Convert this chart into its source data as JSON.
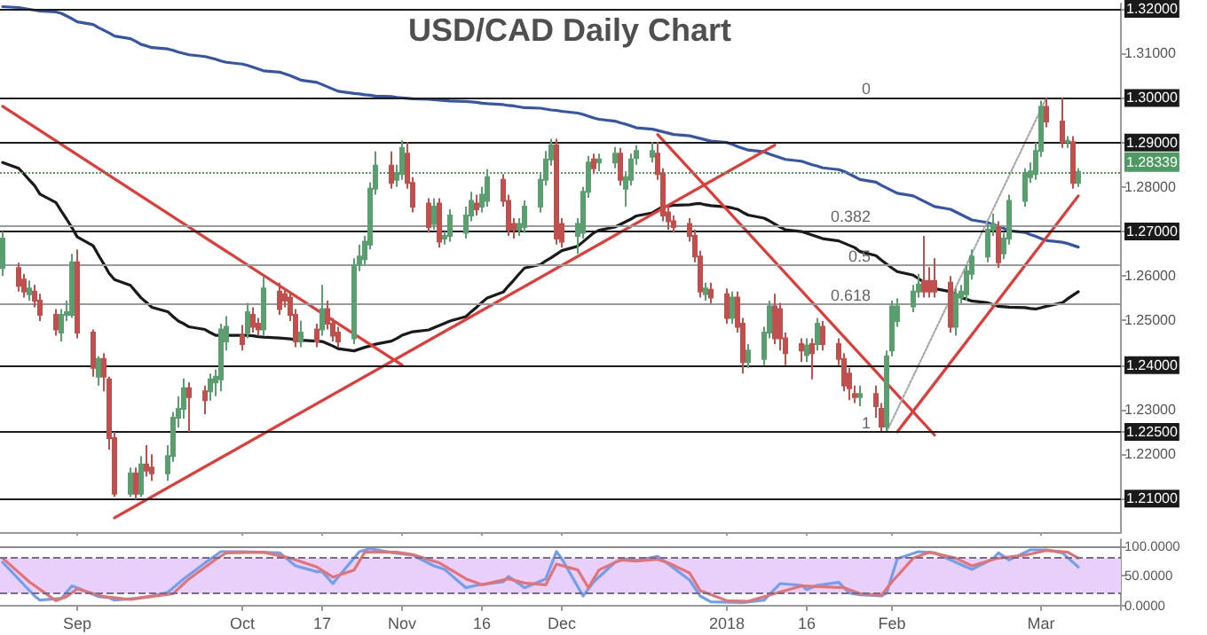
{
  "chart_data": [
    {
      "type": "candlestick",
      "title": "USD/CAD Daily Chart",
      "tick_labels": "y",
      "grid": false,
      "marker": "none",
      "xlim": [
        "2017-08-17T12:00",
        "2018-03-16"
      ],
      "xticks": [
        {
          "value": "2017-09-01",
          "label": null
        },
        {
          "value": "2017-10-02",
          "label": null
        },
        {
          "value": "2017-10-17",
          "label": null
        },
        {
          "value": "2017-11-01",
          "label": null
        },
        {
          "value": "2017-11-16",
          "label": null
        },
        {
          "value": "2017-12-01",
          "label": null
        },
        {
          "value": "2018-01-01",
          "label": null
        },
        {
          "value": "2018-01-16",
          "label": null
        },
        {
          "value": "2018-02-01",
          "label": null
        },
        {
          "value": "2018-03-01",
          "label": null
        }
      ],
      "x": [
        "2017-08-18",
        "2017-08-21",
        "2017-08-22",
        "2017-08-23",
        "2017-08-24",
        "2017-08-25",
        "2017-08-28",
        "2017-08-29",
        "2017-08-30",
        "2017-08-31",
        "2017-09-01",
        "2017-09-04",
        "2017-09-05",
        "2017-09-06",
        "2017-09-07",
        "2017-09-08",
        "2017-09-11",
        "2017-09-12",
        "2017-09-13",
        "2017-09-14",
        "2017-09-15",
        "2017-09-18",
        "2017-09-19",
        "2017-09-20",
        "2017-09-21",
        "2017-09-22",
        "2017-09-25",
        "2017-09-26",
        "2017-09-27",
        "2017-09-28",
        "2017-09-29",
        "2017-10-02",
        "2017-10-03",
        "2017-10-04",
        "2017-10-05",
        "2017-10-06",
        "2017-10-09",
        "2017-10-10",
        "2017-10-11",
        "2017-10-12",
        "2017-10-13",
        "2017-10-16",
        "2017-10-17",
        "2017-10-18",
        "2017-10-19",
        "2017-10-20",
        "2017-10-23",
        "2017-10-24",
        "2017-10-25",
        "2017-10-26",
        "2017-10-27",
        "2017-10-30",
        "2017-10-31",
        "2017-11-01",
        "2017-11-02",
        "2017-11-03",
        "2017-11-06",
        "2017-11-07",
        "2017-11-08",
        "2017-11-09",
        "2017-11-10",
        "2017-11-13",
        "2017-11-14",
        "2017-11-15",
        "2017-11-16",
        "2017-11-17",
        "2017-11-20",
        "2017-11-21",
        "2017-11-22",
        "2017-11-23",
        "2017-11-24",
        "2017-11-27",
        "2017-11-28",
        "2017-11-29",
        "2017-11-30",
        "2017-12-01",
        "2017-12-04",
        "2017-12-05",
        "2017-12-06",
        "2017-12-07",
        "2017-12-08",
        "2017-12-11",
        "2017-12-12",
        "2017-12-13",
        "2017-12-14",
        "2017-12-15",
        "2017-12-18",
        "2017-12-19",
        "2017-12-20",
        "2017-12-21",
        "2017-12-22",
        "2017-12-25",
        "2017-12-26",
        "2017-12-27",
        "2017-12-28",
        "2017-12-29",
        "2018-01-01",
        "2018-01-02",
        "2018-01-03",
        "2018-01-04",
        "2018-01-05",
        "2018-01-08",
        "2018-01-09",
        "2018-01-10",
        "2018-01-11",
        "2018-01-12",
        "2018-01-15",
        "2018-01-16",
        "2018-01-17",
        "2018-01-18",
        "2018-01-19",
        "2018-01-22",
        "2018-01-23",
        "2018-01-24",
        "2018-01-25",
        "2018-01-26",
        "2018-01-29",
        "2018-01-30",
        "2018-01-31",
        "2018-02-01",
        "2018-02-02",
        "2018-02-05",
        "2018-02-06",
        "2018-02-07",
        "2018-02-08",
        "2018-02-09",
        "2018-02-12",
        "2018-02-13",
        "2018-02-14",
        "2018-02-15",
        "2018-02-16",
        "2018-02-19",
        "2018-02-20",
        "2018-02-21",
        "2018-02-22",
        "2018-02-23",
        "2018-02-26",
        "2018-02-27",
        "2018-02-28",
        "2018-03-01",
        "2018-03-02",
        "2018-03-05",
        "2018-03-06",
        "2018-03-07",
        "2018-03-08"
      ],
      "ohlc": [
        [
          1.2618,
          1.27,
          1.26,
          1.2684
        ],
        [
          1.2618,
          1.263,
          1.2565,
          1.2578
        ],
        [
          1.2592,
          1.2605,
          1.2552,
          1.2565
        ],
        [
          1.2559,
          1.259,
          1.2545,
          1.2572
        ],
        [
          1.2565,
          1.258,
          1.253,
          1.2545
        ],
        [
          1.2545,
          1.256,
          1.2499,
          1.2513
        ],
        [
          1.2513,
          1.2526,
          1.2466,
          1.248
        ],
        [
          1.2473,
          1.2526,
          1.2453,
          1.2513
        ],
        [
          1.2513,
          1.2545,
          1.2499,
          1.2519
        ],
        [
          1.2513,
          1.265,
          1.2506,
          1.2631
        ],
        [
          1.2631,
          1.266,
          1.246,
          1.2473
        ],
        [
          1.2473,
          1.248,
          1.2374,
          1.2394
        ],
        [
          1.2374,
          1.242,
          1.2354,
          1.2414
        ],
        [
          1.2414,
          1.2427,
          1.2341,
          1.2374
        ],
        [
          1.2368,
          1.2374,
          1.221,
          1.2236
        ],
        [
          1.2236,
          1.225,
          1.2104,
          1.2111
        ],
        [
          1.2111,
          1.217,
          1.2104,
          1.2157
        ],
        [
          1.2157,
          1.217,
          1.2098,
          1.2111
        ],
        [
          1.2111,
          1.2196,
          1.2104,
          1.2177
        ],
        [
          1.2177,
          1.222,
          1.215,
          1.2163
        ],
        [
          1.217,
          1.22,
          1.214,
          1.2157
        ],
        [
          1.2157,
          1.222,
          1.214,
          1.2196
        ],
        [
          1.2196,
          1.2295,
          1.2183,
          1.2282
        ],
        [
          1.2282,
          1.233,
          1.226,
          1.2302
        ],
        [
          1.2302,
          1.237,
          1.228,
          1.2348
        ],
        [
          1.2348,
          1.2361,
          1.225,
          1.2328
        ],
        [
          1.2341,
          1.2354,
          1.229,
          1.2321
        ],
        [
          1.2341,
          1.2381,
          1.232,
          1.2368
        ],
        [
          1.2361,
          1.239,
          1.233,
          1.2374
        ],
        [
          1.2368,
          1.2493,
          1.2341,
          1.248
        ],
        [
          1.2453,
          1.251,
          1.2433,
          1.2486
        ],
        [
          1.2466,
          1.249,
          1.2433,
          1.2447
        ],
        [
          1.2473,
          1.254,
          1.246,
          1.2519
        ],
        [
          1.2513,
          1.253,
          1.2473,
          1.2486
        ],
        [
          1.2493,
          1.2506,
          1.2466,
          1.248
        ],
        [
          1.248,
          1.26,
          1.2466,
          1.2572
        ],
        [
          1.2565,
          1.2585,
          1.2513,
          1.2526
        ],
        [
          1.2559,
          1.2572,
          1.253,
          1.2545
        ],
        [
          1.2552,
          1.2565,
          1.2499,
          1.2513
        ],
        [
          1.2513,
          1.2526,
          1.244,
          1.2453
        ],
        [
          1.2453,
          1.25,
          1.244,
          1.2473
        ],
        [
          1.248,
          1.2493,
          1.244,
          1.2453
        ],
        [
          1.248,
          1.258,
          1.2466,
          1.2526
        ],
        [
          1.2526,
          1.2545,
          1.248,
          1.2493
        ],
        [
          1.2493,
          1.2506,
          1.2453,
          1.2466
        ],
        [
          1.2473,
          1.2486,
          1.244,
          1.2453
        ],
        [
          1.246,
          1.264,
          1.2447,
          1.2625
        ],
        [
          1.2625,
          1.2671,
          1.2611,
          1.2644
        ],
        [
          1.2638,
          1.269,
          1.2625,
          1.2677
        ],
        [
          1.2671,
          1.281,
          1.266,
          1.2796
        ],
        [
          1.2796,
          1.288,
          1.2783,
          1.2848
        ],
        [
          1.2848,
          1.288,
          1.2796,
          1.2809
        ],
        [
          1.2816,
          1.285,
          1.28,
          1.2829
        ],
        [
          1.2829,
          1.2905,
          1.2816,
          1.2888
        ],
        [
          1.2875,
          1.2901,
          1.2796,
          1.2809
        ],
        [
          1.2809,
          1.2822,
          1.2743,
          1.2756
        ],
        [
          1.2763,
          1.2775,
          1.2697,
          1.271
        ],
        [
          1.2717,
          1.2775,
          1.2704,
          1.2756
        ],
        [
          1.2763,
          1.2775,
          1.2664,
          1.2677
        ],
        [
          1.2684,
          1.27,
          1.2671,
          1.269
        ],
        [
          1.269,
          1.275,
          1.2677,
          1.2736
        ],
        [
          1.2697,
          1.2756,
          1.2684,
          1.2736
        ],
        [
          1.2736,
          1.2789,
          1.2723,
          1.2769
        ],
        [
          1.2763,
          1.2783,
          1.2736,
          1.275
        ],
        [
          1.2756,
          1.28,
          1.2743,
          1.2783
        ],
        [
          1.2769,
          1.284,
          1.2756,
          1.2822
        ],
        [
          1.2816,
          1.2829,
          1.2756,
          1.2769
        ],
        [
          1.2769,
          1.2783,
          1.269,
          1.2704
        ],
        [
          1.2717,
          1.273,
          1.2684,
          1.2704
        ],
        [
          1.2704,
          1.273,
          1.269,
          1.2717
        ],
        [
          1.271,
          1.277,
          1.2697,
          1.2756
        ],
        [
          1.2756,
          1.2829,
          1.2743,
          1.2816
        ],
        [
          1.2816,
          1.2881,
          1.2803,
          1.2862
        ],
        [
          1.2862,
          1.2908,
          1.2848,
          1.2894
        ],
        [
          1.2894,
          1.2908,
          1.2671,
          1.2684
        ],
        [
          1.2717,
          1.273,
          1.2664,
          1.2677
        ],
        [
          1.269,
          1.273,
          1.265,
          1.2717
        ],
        [
          1.2697,
          1.28,
          1.2684,
          1.2789
        ],
        [
          1.2789,
          1.287,
          1.2776,
          1.2855
        ],
        [
          1.2862,
          1.2875,
          1.2829,
          1.2842
        ],
        [
          1.2855,
          1.2875,
          1.2835,
          1.2862
        ],
        [
          1.2855,
          1.289,
          1.2842,
          1.2875
        ],
        [
          1.2875,
          1.2888,
          1.2803,
          1.2816
        ],
        [
          1.2796,
          1.2835,
          1.2756,
          1.2822
        ],
        [
          1.2816,
          1.2875,
          1.2803,
          1.2862
        ],
        [
          1.2865,
          1.2894,
          1.285,
          1.2881
        ],
        [
          1.2868,
          1.2901,
          1.2855,
          1.2881
        ],
        [
          1.2875,
          1.2901,
          1.2816,
          1.2829
        ],
        [
          1.2829,
          1.2842,
          1.2723,
          1.2736
        ],
        [
          1.2743,
          1.2756,
          1.2704,
          1.2723
        ],
        [
          1.2723,
          1.2736,
          1.2697,
          1.271
        ],
        [
          1.2717,
          1.273,
          1.2677,
          1.269
        ],
        [
          1.269,
          1.2704,
          1.2631,
          1.2644
        ],
        [
          1.2644,
          1.2657,
          1.2552,
          1.2565
        ],
        [
          1.2559,
          1.2585,
          1.2545,
          1.2572
        ],
        [
          1.2569,
          1.2585,
          1.2539,
          1.2552
        ],
        [
          1.2559,
          1.2572,
          1.2493,
          1.2506
        ],
        [
          1.2506,
          1.2565,
          1.2493,
          1.2552
        ],
        [
          1.2552,
          1.2565,
          1.2473,
          1.2486
        ],
        [
          1.2493,
          1.2506,
          1.2381,
          1.2407
        ],
        [
          1.2407,
          1.2447,
          1.2394,
          1.2433
        ],
        [
          1.2414,
          1.2486,
          1.24,
          1.2473
        ],
        [
          1.2473,
          1.2545,
          1.246,
          1.2532
        ],
        [
          1.2532,
          1.256,
          1.2447,
          1.246
        ],
        [
          1.2526,
          1.254,
          1.2433,
          1.246
        ],
        [
          1.246,
          1.2473,
          1.24,
          1.2427
        ],
        [
          1.2447,
          1.246,
          1.2407,
          1.2433
        ],
        [
          1.2423,
          1.246,
          1.2407,
          1.2444
        ],
        [
          1.2447,
          1.246,
          1.2368,
          1.2427
        ],
        [
          1.2447,
          1.2506,
          1.2433,
          1.2493
        ],
        [
          1.2486,
          1.2499,
          1.2433,
          1.2447
        ],
        [
          1.2447,
          1.246,
          1.24,
          1.2414
        ],
        [
          1.2414,
          1.2427,
          1.2341,
          1.2354
        ],
        [
          1.2381,
          1.2394,
          1.2321,
          1.2348
        ],
        [
          1.2335,
          1.2354,
          1.2315,
          1.2328
        ],
        [
          1.2328,
          1.2354,
          1.2308,
          1.2335
        ],
        [
          1.2335,
          1.2354,
          1.2282,
          1.2308
        ],
        [
          1.2302,
          1.2315,
          1.2252,
          1.2262
        ],
        [
          1.2262,
          1.2433,
          1.2252,
          1.242
        ],
        [
          1.2433,
          1.2545,
          1.242,
          1.2532
        ],
        [
          1.2499,
          1.255,
          1.2486,
          1.2532
        ],
        [
          1.2532,
          1.258,
          1.2519,
          1.2565
        ],
        [
          1.2565,
          1.2605,
          1.2552,
          1.2581
        ],
        [
          1.2589,
          1.269,
          1.2552,
          1.2565
        ],
        [
          1.2589,
          1.262,
          1.2552,
          1.2565
        ],
        [
          1.2589,
          1.264,
          1.2552,
          1.2565
        ],
        [
          1.2585,
          1.26,
          1.2473,
          1.2486
        ],
        [
          1.2486,
          1.2572,
          1.2466,
          1.2559
        ],
        [
          1.2552,
          1.258,
          1.2539,
          1.2565
        ],
        [
          1.2559,
          1.2625,
          1.2545,
          1.2611
        ],
        [
          1.2605,
          1.266,
          1.2592,
          1.2644
        ],
        [
          1.2644,
          1.2717,
          1.2631,
          1.2704
        ],
        [
          1.2704,
          1.274,
          1.269,
          1.2717
        ],
        [
          1.271,
          1.2723,
          1.2618,
          1.2631
        ],
        [
          1.2651,
          1.2697,
          1.2638,
          1.2684
        ],
        [
          1.2684,
          1.2783,
          1.2671,
          1.2769
        ],
        [
          1.2769,
          1.2842,
          1.2756,
          1.2829
        ],
        [
          1.2822,
          1.2855,
          1.2809,
          1.2835
        ],
        [
          1.2829,
          1.29,
          1.2816,
          1.2881
        ],
        [
          1.2881,
          1.2994,
          1.2868,
          1.298
        ],
        [
          1.298,
          1.3,
          1.2934,
          1.2947
        ],
        [
          1.2947,
          1.3,
          1.2888,
          1.2901
        ],
        [
          1.2901,
          1.2914,
          1.2888,
          1.2904
        ],
        [
          1.2901,
          1.2914,
          1.2796,
          1.2809
        ],
        [
          1.2809,
          1.2842,
          1.28,
          1.2834
        ]
      ],
      "colors": [
        "#5b9e70",
        "#c0504d",
        "#c0504d",
        "#5b9e70",
        "#c0504d",
        "#c0504d",
        "#c0504d",
        "#5b9e70",
        "#5b9e70",
        "#5b9e70",
        "#c0504d",
        "#c0504d",
        "#5b9e70",
        "#c0504d",
        "#c0504d",
        "#c0504d",
        "#5b9e70",
        "#c0504d",
        "#5b9e70",
        "#c0504d",
        "#c0504d",
        "#5b9e70",
        "#5b9e70",
        "#5b9e70",
        "#5b9e70",
        "#c0504d",
        "#c0504d",
        "#5b9e70",
        "#5b9e70",
        "#5b9e70",
        "#5b9e70",
        "#c0504d",
        "#5b9e70",
        "#c0504d",
        "#c0504d",
        "#5b9e70",
        "#c0504d",
        "#c0504d",
        "#c0504d",
        "#c0504d",
        "#5b9e70",
        "#c0504d",
        "#5b9e70",
        "#c0504d",
        "#c0504d",
        "#c0504d",
        "#5b9e70",
        "#5b9e70",
        "#5b9e70",
        "#5b9e70",
        "#5b9e70",
        "#c0504d",
        "#5b9e70",
        "#5b9e70",
        "#c0504d",
        "#c0504d",
        "#c0504d",
        "#5b9e70",
        "#c0504d",
        "#5b9e70",
        "#5b9e70",
        "#5b9e70",
        "#5b9e70",
        "#c0504d",
        "#5b9e70",
        "#5b9e70",
        "#c0504d",
        "#c0504d",
        "#c0504d",
        "#5b9e70",
        "#5b9e70",
        "#5b9e70",
        "#5b9e70",
        "#5b9e70",
        "#c0504d",
        "#c0504d",
        "#5b9e70",
        "#5b9e70",
        "#5b9e70",
        "#c0504d",
        "#5b9e70",
        "#5b9e70",
        "#c0504d",
        "#5b9e70",
        "#5b9e70",
        "#5b9e70",
        "#5b9e70",
        "#c0504d",
        "#c0504d",
        "#c0504d",
        "#c0504d",
        "#c0504d",
        "#c0504d",
        "#c0504d",
        "#5b9e70",
        "#c0504d",
        "#c0504d",
        "#5b9e70",
        "#c0504d",
        "#c0504d",
        "#5b9e70",
        "#5b9e70",
        "#5b9e70",
        "#c0504d",
        "#c0504d",
        "#c0504d",
        "#c0504d",
        "#5b9e70",
        "#c0504d",
        "#5b9e70",
        "#c0504d",
        "#c0504d",
        "#c0504d",
        "#c0504d",
        "#c0504d",
        "#5b9e70",
        "#c0504d",
        "#c0504d",
        "#5b9e70",
        "#5b9e70",
        "#5b9e70",
        "#5b9e70",
        "#5b9e70",
        "#c0504d",
        "#c0504d",
        "#c0504d",
        "#c0504d",
        "#5b9e70",
        "#5b9e70",
        "#5b9e70",
        "#5b9e70",
        "#5b9e70",
        "#5b9e70",
        "#c0504d",
        "#5b9e70",
        "#5b9e70",
        "#5b9e70",
        "#5b9e70",
        "#5b9e70",
        "#5b9e70",
        "#c0504d",
        "#c0504d",
        "#5b9e70",
        "#c0504d",
        "#5b9e70"
      ],
      "ylim": [
        1.2025,
        1.3212
      ],
      "yticks": [
        {
          "value": 1.21,
          "label": "1.21000"
        },
        {
          "value": 1.22,
          "label": "1.22000"
        },
        {
          "value": 1.225,
          "label": "1.22500"
        },
        {
          "value": 1.23,
          "label": "1.23000"
        },
        {
          "value": 1.24,
          "label": "1.24000"
        },
        {
          "value": 1.25,
          "label": "1.25000"
        },
        {
          "value": 1.26,
          "label": "1.26000"
        },
        {
          "value": 1.27,
          "label": "1.27000"
        },
        {
          "value": 1.28,
          "label": "1.28000"
        },
        {
          "value": 1.29,
          "label": "1.29000"
        },
        {
          "value": 1.3,
          "label": "1.30000"
        },
        {
          "value": 1.31,
          "label": "1.31000"
        },
        {
          "value": 1.32,
          "label": "1.32000"
        }
      ],
      "series": [
        {
          "type": "line",
          "color": "#3556a8",
          "values": [
            1.3205,
            1.3203,
            1.3201,
            1.3199,
            1.3197,
            1.3195,
            1.3193,
            1.319,
            1.3184,
            1.3178,
            1.3171,
            1.3165,
            1.3158,
            1.3152,
            1.3146,
            1.3139,
            1.3133,
            1.3127,
            1.312,
            1.3117,
            1.3113,
            1.311,
            1.3107,
            1.3103,
            1.31,
            1.3097,
            1.3093,
            1.309,
            1.3087,
            1.3083,
            1.308,
            1.3076,
            1.3073,
            1.3069,
            1.3065,
            1.3061,
            1.3058,
            1.3054,
            1.305,
            1.3045,
            1.304,
            1.3035,
            1.303,
            1.3025,
            1.302,
            1.3015,
            1.301,
            1.3009,
            1.3007,
            1.3006,
            1.3004,
            1.3003,
            1.3001,
            1.3,
            1.2999,
            1.2998,
            1.2997,
            1.2996,
            1.2995,
            1.2994,
            1.2993,
            1.2992,
            1.2991,
            1.299,
            1.2988,
            1.2987,
            1.2985,
            1.2983,
            1.2982,
            1.298,
            1.2978,
            1.2977,
            1.2975,
            1.2973,
            1.2972,
            1.297,
            1.2966,
            1.2963,
            1.2959,
            1.2955,
            1.2952,
            1.2948,
            1.2944,
            1.2941,
            1.2937,
            1.2933,
            1.293,
            1.2927,
            1.2924,
            1.2921,
            1.2918,
            1.2915,
            1.2912,
            1.2909,
            1.2906,
            1.2903,
            1.29,
            1.2896,
            1.2891,
            1.2887,
            1.2883,
            1.2879,
            1.2874,
            1.287,
            1.2866,
            1.2862,
            1.2858,
            1.2854,
            1.285,
            1.2847,
            1.2843,
            1.2839,
            1.2835,
            1.2829,
            1.2823,
            1.2817,
            1.2811,
            1.2804,
            1.2798,
            1.2792,
            1.2786,
            1.278,
            1.2774,
            1.2768,
            1.2762,
            1.2756,
            1.275,
            1.2744,
            1.2738,
            1.2732,
            1.2726,
            1.272,
            1.2716,
            1.2711,
            1.2707,
            1.2702,
            1.2698,
            1.2693,
            1.2689,
            1.2684,
            1.268,
            1.2676,
            1.2673,
            1.2669,
            1.2665
          ]
        },
        {
          "type": "line",
          "color": "#1a1a1a",
          "values": [
            1.2855,
            1.2842,
            1.2829,
            1.2816,
            1.2803,
            1.2784,
            1.2765,
            1.2746,
            1.2728,
            1.2709,
            1.2688,
            1.2668,
            1.2647,
            1.2627,
            1.2606,
            1.2592,
            1.2579,
            1.2565,
            1.2551,
            1.2541,
            1.253,
            1.252,
            1.2509,
            1.2499,
            1.2493,
            1.2486,
            1.248,
            1.2473,
            1.2467,
            1.2467,
            1.2467,
            1.2467,
            1.2467,
            1.2466,
            1.2464,
            1.2463,
            1.2461,
            1.246,
            1.2459,
            1.2457,
            1.2456,
            1.2454,
            1.2453,
            1.2448,
            1.2443,
            1.2437,
            1.2432,
            1.2436,
            1.244,
            1.2443,
            1.2447,
            1.2454,
            1.246,
            1.2467,
            1.2471,
            1.2475,
            1.2479,
            1.2484,
            1.2489,
            1.2494,
            1.2499,
            1.2509,
            1.252,
            1.253,
            1.2541,
            1.2551,
            1.2564,
            1.2578,
            1.2591,
            1.2605,
            1.2618,
            1.2626,
            1.2634,
            1.2641,
            1.2649,
            1.2657,
            1.2667,
            1.2677,
            1.2687,
            1.2697,
            1.2703,
            1.271,
            1.2716,
            1.2722,
            1.2728,
            1.2735,
            1.2742,
            1.2749,
            1.2756,
            1.2757,
            1.2759,
            1.276,
            1.2762,
            1.2763,
            1.276,
            1.2758,
            1.2755,
            1.2753,
            1.275,
            1.2743,
            1.2737,
            1.273,
            1.2724,
            1.2717,
            1.271,
            1.2704,
            1.27,
            1.2696,
            1.2692,
            1.2688,
            1.2684,
            1.2679,
            1.2674,
            1.2669,
            1.2664,
            1.2655,
            1.2646,
            1.2636,
            1.2627,
            1.2618,
            1.261,
            1.2602,
            1.2594,
            1.2586,
            1.2578,
            1.2572,
            1.2565,
            1.2559,
            1.2552,
            1.2548,
            1.2544,
            1.254,
            1.2536,
            1.2532,
            1.2531,
            1.253,
            1.2529,
            1.2527,
            1.2526,
            1.2529,
            1.2532,
            1.254,
            1.2549,
            1.2557,
            1.2565
          ]
        },
        {
          "type": "line",
          "color": "#e53935",
          "x": [
            "2017-08-18",
            "2017-11-01"
          ],
          "values": [
            1.2981,
            1.24
          ]
        },
        {
          "type": "line",
          "color": "#e53935",
          "x": [
            "2017-09-08",
            "2018-01-10"
          ],
          "values": [
            1.2057,
            1.2894
          ]
        },
        {
          "type": "line",
          "color": "#e53935",
          "x": [
            "2017-12-19",
            "2018-02-09"
          ],
          "values": [
            1.2918,
            1.2243
          ]
        },
        {
          "type": "line",
          "color": "#e53935",
          "x": [
            "2018-02-02",
            "2018-03-08"
          ],
          "values": [
            1.225,
            1.278
          ]
        },
        {
          "type": "line",
          "color": "#a8a8a8",
          "line_style": "dotted",
          "x": [
            "2018-01-31",
            "2018-03-02"
          ],
          "values": [
            1.225,
            1.3
          ]
        }
      ],
      "ref_lines": [
        {
          "axis": "y",
          "value": 1.32,
          "color": "#1a1a1a"
        },
        {
          "axis": "y",
          "value": 1.3,
          "color": "#1a1a1a"
        },
        {
          "axis": "y",
          "value": 1.29,
          "color": "#1a1a1a"
        },
        {
          "axis": "y",
          "value": 1.27,
          "color": "#1a1a1a"
        },
        {
          "axis": "y",
          "value": 1.24,
          "color": "#1a1a1a"
        },
        {
          "axis": "y",
          "value": 1.225,
          "color": "#1a1a1a"
        },
        {
          "axis": "y",
          "value": 1.21,
          "color": "#1a1a1a"
        },
        {
          "axis": "y",
          "value": 1.27135,
          "color": "#9a9a9a"
        },
        {
          "axis": "y",
          "value": 1.2625,
          "color": "#9a9a9a"
        },
        {
          "axis": "y",
          "value": 1.25365,
          "color": "#9a9a9a"
        },
        {
          "axis": "y",
          "value": 1.28339,
          "label": "1.28339",
          "color": "#4e9a63",
          "line_style": "dotted"
        }
      ],
      "annotations": [
        {
          "text": "0",
          "x": "2018-01-31",
          "y": 1.3
        },
        {
          "text": "0.382",
          "x": "2018-01-31",
          "y": 1.27135
        },
        {
          "text": "0.5",
          "x": "2018-01-31",
          "y": 1.2625
        },
        {
          "text": "0.618",
          "x": "2018-01-31",
          "y": 1.25365
        },
        {
          "text": "1",
          "x": "2018-01-31",
          "y": 1.225
        }
      ]
    },
    {
      "type": "line",
      "grid": false,
      "marker": "none",
      "xlim": [
        "2017-08-17T12:00",
        "2018-03-16"
      ],
      "xticks": [
        {
          "value": "2017-09-01",
          "label": "Sep"
        },
        {
          "value": "2017-10-02",
          "label": "Oct"
        },
        {
          "value": "2017-10-17",
          "label": "17"
        },
        {
          "value": "2017-11-01",
          "label": "Nov"
        },
        {
          "value": "2017-11-16",
          "label": "16"
        },
        {
          "value": "2017-12-01",
          "label": "Dec"
        },
        {
          "value": "2018-01-01",
          "label": "2018"
        },
        {
          "value": "2018-01-16",
          "label": "16"
        },
        {
          "value": "2018-02-01",
          "label": "Feb"
        },
        {
          "value": "2018-03-01",
          "label": "Mar"
        }
      ],
      "ylim": [
        -8,
        112
      ],
      "yticks": [
        {
          "value": 0,
          "label": "0.0000"
        },
        {
          "value": 50,
          "label": "50.0000"
        },
        {
          "value": 100,
          "label": "100.0000"
        }
      ],
      "bands": [
        {
          "axis": "y",
          "from": 20,
          "to": 80,
          "color": "#e8d0fa"
        }
      ],
      "ref_lines": [
        {
          "axis": "y",
          "value": 100,
          "color": "#8a8a8a"
        },
        {
          "axis": "y",
          "value": 80,
          "color": "#7a6a8a",
          "line_style": "dashed"
        },
        {
          "axis": "y",
          "value": 20,
          "color": "#7a6a8a",
          "line_style": "dashed"
        }
      ],
      "series": [
        {
          "color": "#6f9ff0",
          "x": [
            "2017-08-18",
            "2017-08-24",
            "2017-08-25",
            "2017-08-29",
            "2017-08-31",
            "2017-09-01",
            "2017-09-05",
            "2017-09-07",
            "2017-09-08",
            "2017-09-12",
            "2017-09-15",
            "2017-09-18",
            "2017-09-21",
            "2017-09-25",
            "2017-09-28",
            "2017-10-02",
            "2017-10-09",
            "2017-10-12",
            "2017-10-16",
            "2017-10-17",
            "2017-10-19",
            "2017-10-24",
            "2017-10-26",
            "2017-10-31",
            "2017-11-03",
            "2017-11-07",
            "2017-11-09",
            "2017-11-13",
            "2017-11-15",
            "2017-11-20",
            "2017-11-21",
            "2017-11-24",
            "2017-11-28",
            "2017-11-30",
            "2017-12-01",
            "2017-12-05",
            "2017-12-07",
            "2017-12-11",
            "2017-12-13",
            "2017-12-15",
            "2017-12-19",
            "2017-12-21",
            "2017-12-25",
            "2017-12-27",
            "2017-12-29",
            "2018-01-04",
            "2018-01-08",
            "2018-01-11",
            "2018-01-15",
            "2018-01-16",
            "2018-01-18",
            "2018-01-22",
            "2018-01-24",
            "2018-01-26",
            "2018-01-30",
            "2018-01-31",
            "2018-02-02",
            "2018-02-06",
            "2018-02-09",
            "2018-02-13",
            "2018-02-16",
            "2018-02-20",
            "2018-02-21",
            "2018-02-23",
            "2018-02-27",
            "2018-03-02",
            "2018-03-05",
            "2018-03-08"
          ],
          "values": [
            73,
            16,
            9,
            12,
            33,
            30,
            15,
            13,
            9,
            12,
            16,
            22,
            45,
            72,
            91,
            91,
            89,
            67,
            57,
            57,
            37,
            91,
            96,
            88,
            85,
            67,
            61,
            30,
            34,
            40,
            49,
            30,
            45,
            91,
            79,
            16,
            40,
            73,
            79,
            76,
            83,
            70,
            43,
            16,
            6,
            5,
            9,
            37,
            34,
            27,
            34,
            39,
            21,
            18,
            16,
            21,
            79,
            91,
            89,
            73,
            61,
            79,
            89,
            77,
            94,
            94,
            89,
            65
          ]
        },
        {
          "color": "#e57373",
          "x": [
            "2017-08-18",
            "2017-08-23",
            "2017-08-28",
            "2017-08-30",
            "2017-09-01",
            "2017-09-06",
            "2017-09-11",
            "2017-09-14",
            "2017-09-19",
            "2017-09-22",
            "2017-09-27",
            "2017-09-29",
            "2017-10-06",
            "2017-10-11",
            "2017-10-16",
            "2017-10-19",
            "2017-10-23",
            "2017-10-25",
            "2017-10-31",
            "2017-11-03",
            "2017-11-08",
            "2017-11-13",
            "2017-11-16",
            "2017-11-21",
            "2017-11-24",
            "2017-11-28",
            "2017-11-30",
            "2017-12-04",
            "2017-12-06",
            "2017-12-08",
            "2017-12-12",
            "2017-12-15",
            "2017-12-19",
            "2017-12-21",
            "2017-12-25",
            "2017-12-27",
            "2018-01-01",
            "2018-01-05",
            "2018-01-10",
            "2018-01-15",
            "2018-01-18",
            "2018-01-23",
            "2018-01-26",
            "2018-01-30",
            "2018-02-01",
            "2018-02-05",
            "2018-02-08",
            "2018-02-13",
            "2018-02-16",
            "2018-02-21",
            "2018-02-26",
            "2018-03-02",
            "2018-03-06",
            "2018-03-08"
          ],
          "values": [
            80,
            40,
            8,
            15,
            28,
            15,
            10,
            14,
            20,
            45,
            78,
            89,
            90,
            80,
            65,
            48,
            60,
            90,
            90,
            86,
            72,
            45,
            35,
            45,
            38,
            35,
            70,
            60,
            30,
            60,
            77,
            75,
            78,
            72,
            55,
            25,
            8,
            7,
            20,
            33,
            32,
            30,
            20,
            17,
            40,
            80,
            90,
            80,
            67,
            80,
            85,
            93,
            90,
            80
          ]
        }
      ]
    }
  ]
}
